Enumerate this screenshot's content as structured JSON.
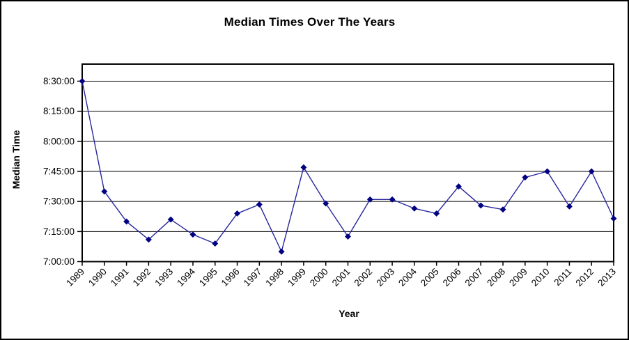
{
  "chart": {
    "title": "Median Times Over The Years",
    "x_axis_title": "Year",
    "y_axis_title": "Median Time"
  },
  "chart_data": {
    "type": "line",
    "title": "Median Times Over The Years",
    "xlabel": "Year",
    "ylabel": "Median Time",
    "legend": "none",
    "grid": "horizontal-major",
    "categories": [
      "1989",
      "1990",
      "1991",
      "1992",
      "1993",
      "1994",
      "1995",
      "1996",
      "1997",
      "1998",
      "1999",
      "2000",
      "2001",
      "2002",
      "2003",
      "2004",
      "2005",
      "2006",
      "2007",
      "2008",
      "2009",
      "2010",
      "2011",
      "2012",
      "2013"
    ],
    "values_time": [
      "8:30:00",
      "7:35:00",
      "7:20:00",
      "7:11:00",
      "7:21:00",
      "7:13:30",
      "7:09:00",
      "7:24:00",
      "7:28:30",
      "7:05:00",
      "7:47:00",
      "7:29:00",
      "7:12:30",
      "7:31:00",
      "7:31:00",
      "7:26:30",
      "7:24:00",
      "7:37:30",
      "7:28:00",
      "7:26:00",
      "7:42:00",
      "7:45:00",
      "7:27:30",
      "7:45:00",
      "7:21:30"
    ],
    "values_minutes_after_7h": [
      90,
      35,
      20,
      11,
      21,
      13.5,
      9,
      24,
      28.5,
      5,
      47,
      29,
      12.5,
      31,
      31,
      26.5,
      24,
      37.5,
      28,
      26,
      42,
      45,
      27.5,
      45,
      21.5
    ],
    "y_ticks": [
      "8:30:00",
      "8:15:00",
      "8:00:00",
      "7:45:00",
      "7:30:00",
      "7:15:00",
      "7:00:00"
    ],
    "y_tick_minutes_after_7h": [
      90,
      75,
      60,
      45,
      30,
      15,
      0
    ],
    "ylim_time": [
      "7:00:00",
      "8:30:00"
    ],
    "marker": "diamond",
    "line_color": "#26269c",
    "marker_color": "#000080",
    "axis_color": "#000000",
    "gridline_color": "#000000",
    "background_color": "#ffffff"
  }
}
